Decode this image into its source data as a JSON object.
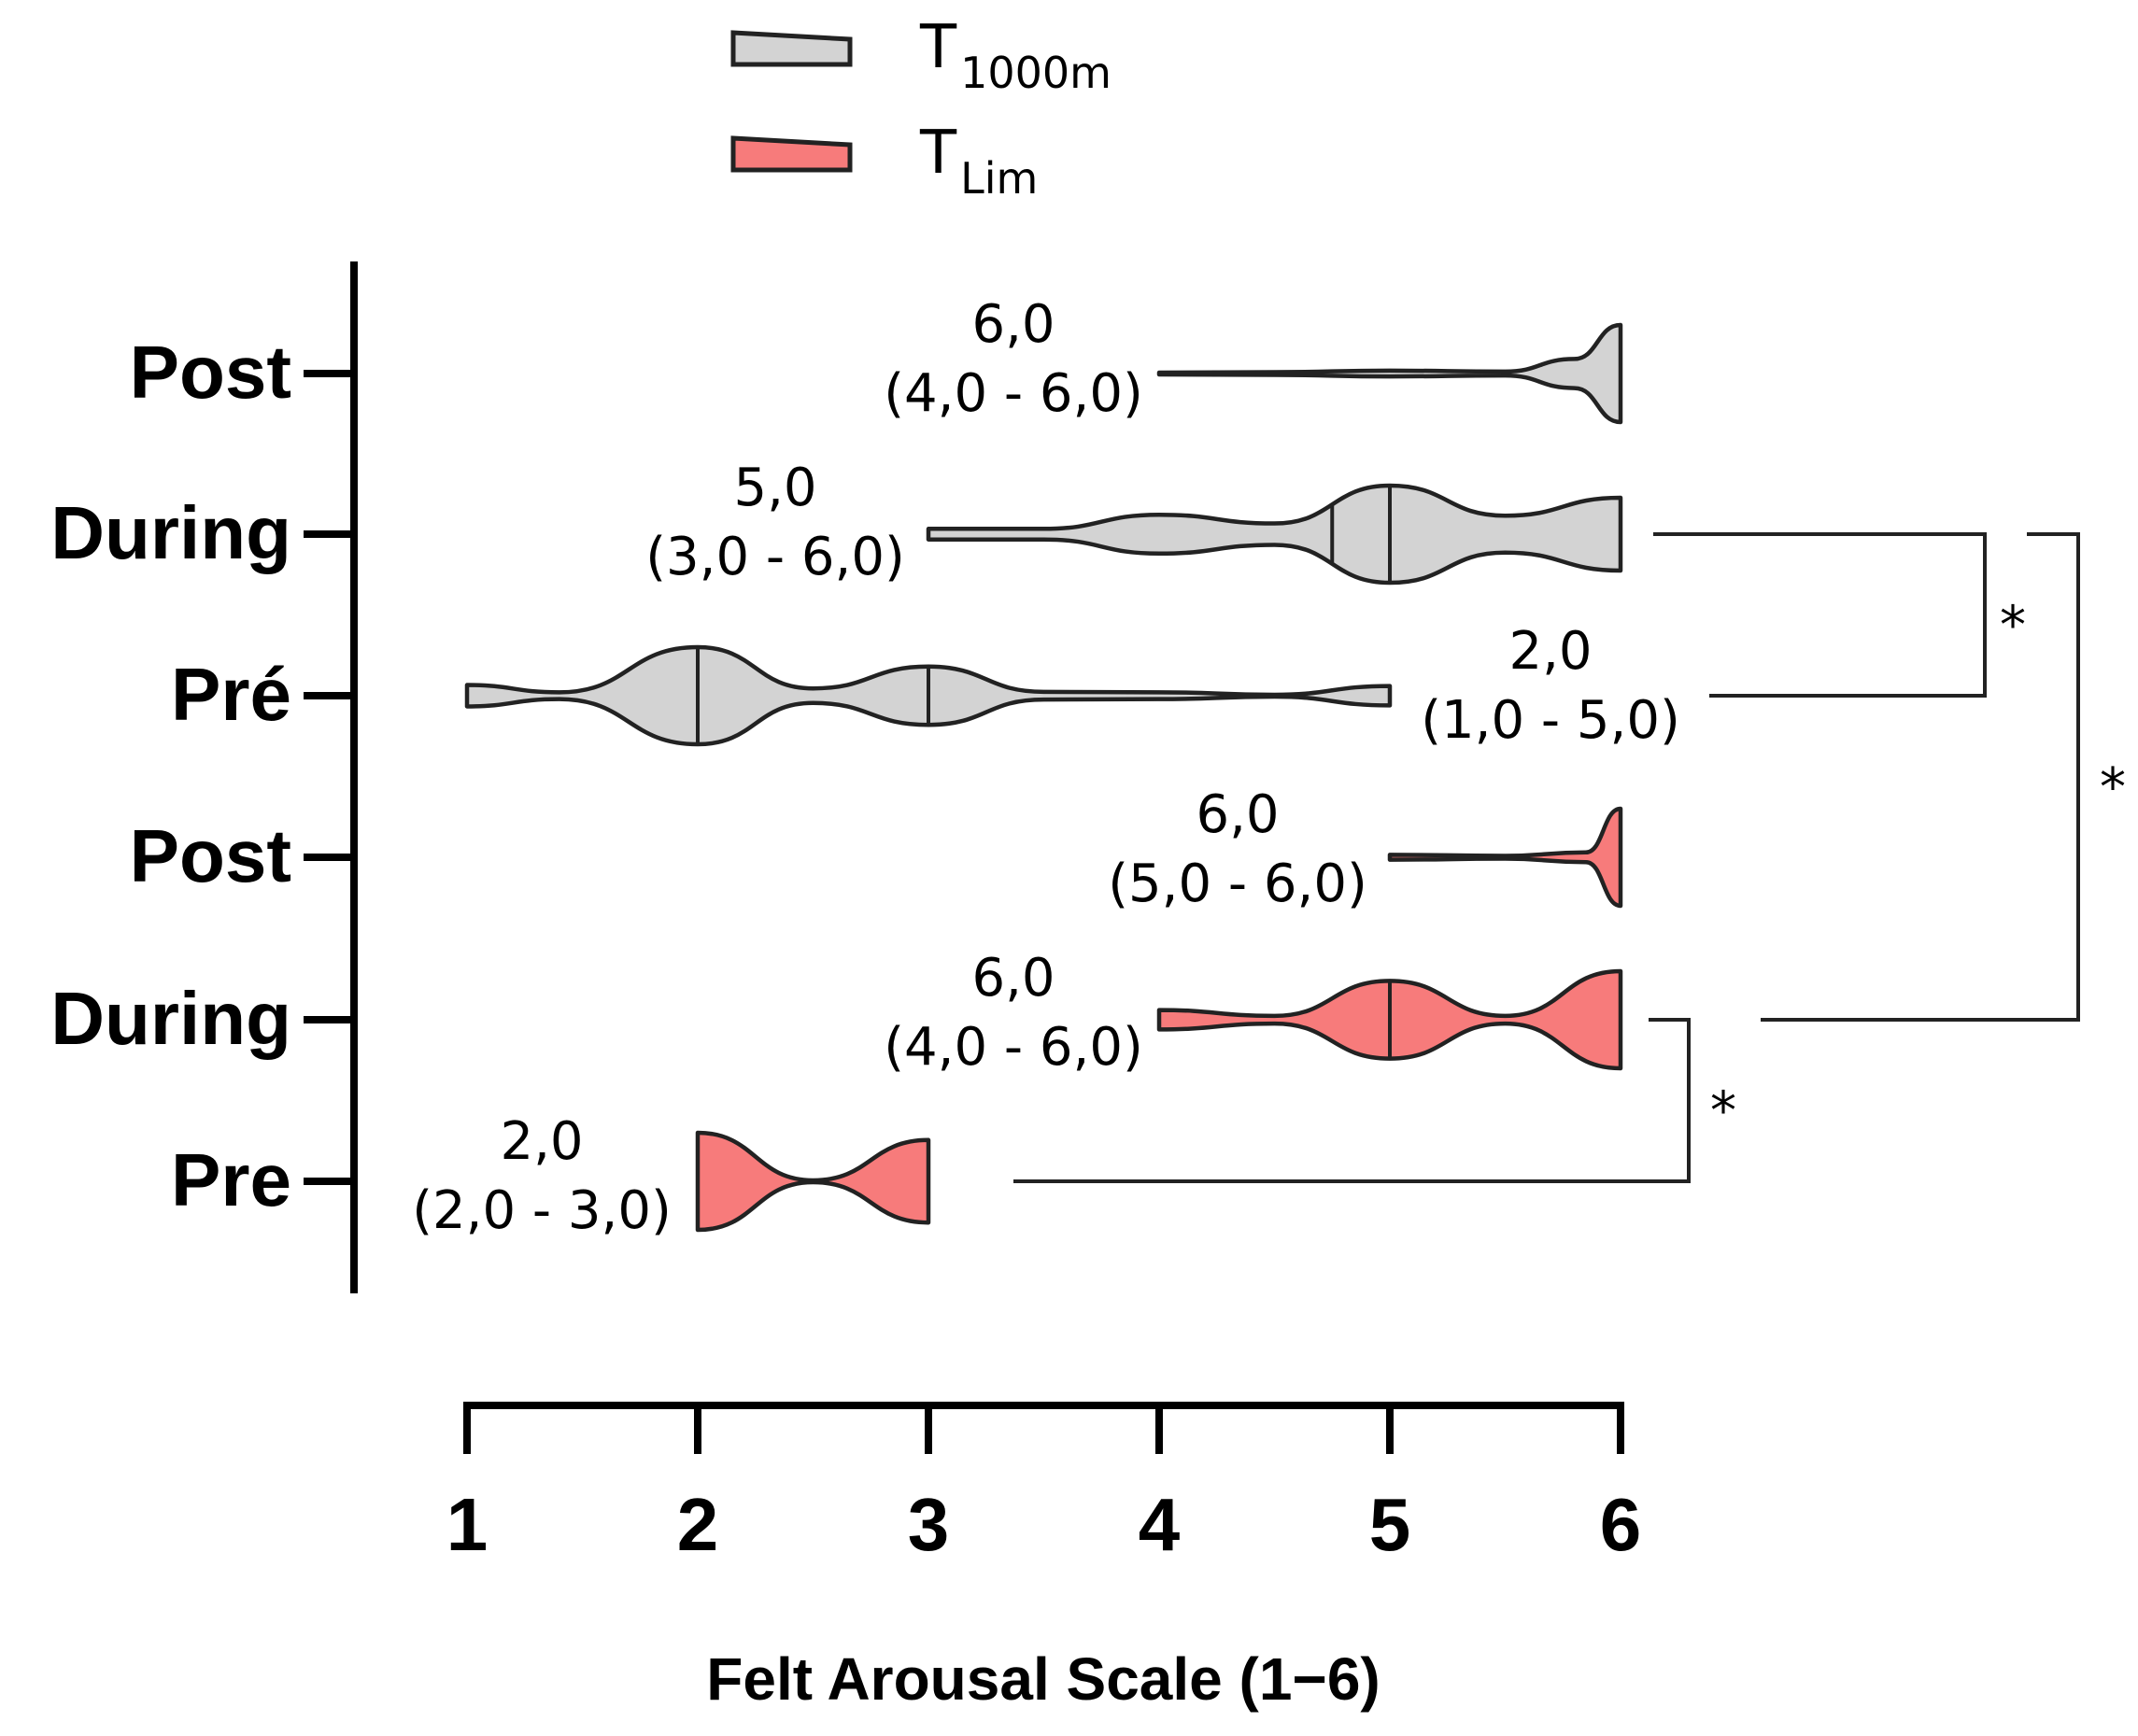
{
  "chart_data": {
    "type": "violin",
    "orientation": "horizontal",
    "xlabel": "Felt Arousal Scale  (1−6)",
    "xlim": [
      1,
      6
    ],
    "xticks": [
      "1",
      "2",
      "3",
      "4",
      "5",
      "6"
    ],
    "legend": {
      "placement": "top",
      "entries": [
        {
          "series": "T1000m",
          "main": "T",
          "sub": "1000m",
          "color": "#d3d3d3"
        },
        {
          "series": "TLim",
          "main": "T",
          "sub": "Lim",
          "color": "#f77b7b"
        }
      ]
    },
    "violins": [
      {
        "label": "Post",
        "series": "T1000m",
        "median": 6.0,
        "min": 4.0,
        "max": 6.0,
        "annotation": [
          "6,0",
          "(4,0 - 6,0)"
        ],
        "profile": [
          [
            4.0,
            0.02
          ],
          [
            4.5,
            0.03
          ],
          [
            5.0,
            0.06
          ],
          [
            5.5,
            0.04
          ],
          [
            5.8,
            0.3
          ],
          [
            6.0,
            1.0
          ]
        ],
        "median_lines": []
      },
      {
        "label": "During",
        "series": "T1000m",
        "median": 5.0,
        "min": 3.0,
        "max": 6.0,
        "annotation": [
          "5,0",
          "(3,0 - 6,0)"
        ],
        "profile": [
          [
            3.0,
            0.11
          ],
          [
            3.5,
            0.11
          ],
          [
            4.0,
            0.4
          ],
          [
            4.5,
            0.22
          ],
          [
            5.0,
            1.0
          ],
          [
            5.5,
            0.38
          ],
          [
            6.0,
            0.75
          ]
        ],
        "median_lines": [
          4.75,
          5.0
        ]
      },
      {
        "label": "Pré",
        "series": "T1000m",
        "median": 2.0,
        "min": 1.0,
        "max": 5.0,
        "annotation": [
          "2,0",
          "(1,0 - 5,0)"
        ],
        "profile": [
          [
            1.0,
            0.22
          ],
          [
            1.4,
            0.07
          ],
          [
            2.0,
            1.0
          ],
          [
            2.5,
            0.15
          ],
          [
            3.0,
            0.6
          ],
          [
            3.5,
            0.08
          ],
          [
            4.0,
            0.07
          ],
          [
            4.5,
            0.02
          ],
          [
            5.0,
            0.2
          ]
        ],
        "median_lines": [
          2.0,
          3.0
        ]
      },
      {
        "label": "Post",
        "series": "TLim",
        "median": 6.0,
        "min": 5.0,
        "max": 6.0,
        "annotation": [
          "6,0",
          "(5,0 - 6,0)"
        ],
        "profile": [
          [
            5.0,
            0.05
          ],
          [
            5.5,
            0.03
          ],
          [
            5.85,
            0.1
          ],
          [
            6.0,
            1.0
          ]
        ],
        "median_lines": []
      },
      {
        "label": "During",
        "series": "TLim",
        "median": 6.0,
        "min": 4.0,
        "max": 6.0,
        "annotation": [
          "6,0",
          "(4,0 - 6,0)"
        ],
        "profile": [
          [
            4.0,
            0.2
          ],
          [
            4.5,
            0.08
          ],
          [
            5.0,
            0.8
          ],
          [
            5.5,
            0.08
          ],
          [
            6.0,
            1.0
          ]
        ],
        "median_lines": [
          5.0
        ]
      },
      {
        "label": "Pre",
        "series": "TLim",
        "median": 2.0,
        "min": 2.0,
        "max": 3.0,
        "annotation": [
          "2,0",
          "(2,0 - 3,0)"
        ],
        "profile": [
          [
            2.0,
            1.0
          ],
          [
            2.5,
            0.02
          ],
          [
            3.0,
            0.85
          ]
        ],
        "median_lines": []
      }
    ],
    "significance": [
      {
        "from": 1,
        "to": 2,
        "mark": "*"
      },
      {
        "from": 1,
        "to": 4,
        "mark": "*"
      },
      {
        "from": 4,
        "to": 5,
        "mark": "*"
      }
    ]
  }
}
